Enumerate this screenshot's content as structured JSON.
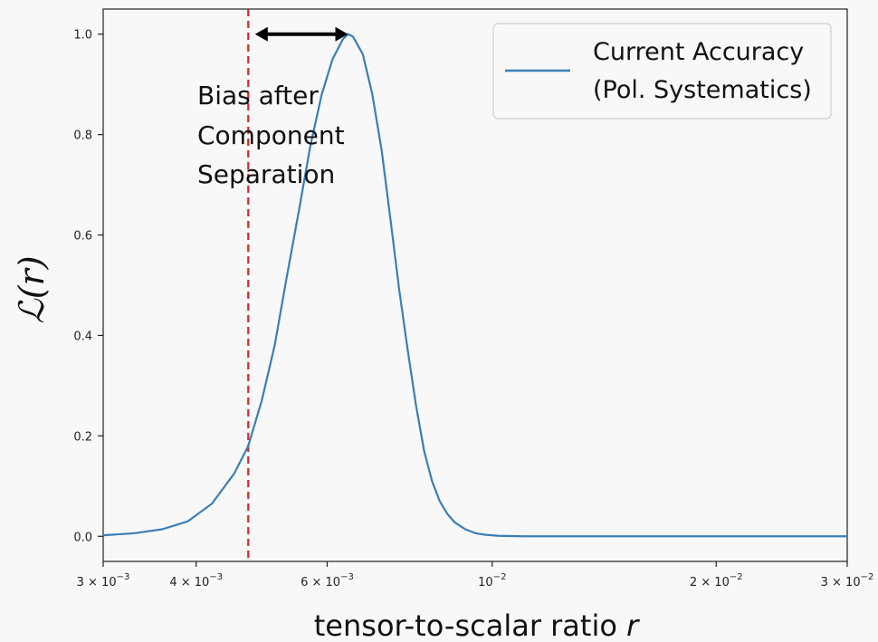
{
  "chart_data": {
    "type": "line",
    "xscale": "log",
    "xlim": [
      0.003,
      0.03
    ],
    "ylim": [
      -0.05,
      1.05
    ],
    "xlabel_text": "tensor-to-scalar ratio ",
    "xlabel_var": "r",
    "ylabel": "ℒ(r)",
    "xticks": [
      {
        "value": 0.003,
        "mant": "3 × 10",
        "exp": "−3"
      },
      {
        "value": 0.004,
        "mant": "4 × 10",
        "exp": "−3"
      },
      {
        "value": 0.006,
        "mant": "6 × 10",
        "exp": "−3"
      },
      {
        "value": 0.01,
        "mant": "10",
        "exp": "−2"
      },
      {
        "value": 0.02,
        "mant": "2 × 10",
        "exp": "−2"
      },
      {
        "value": 0.03,
        "mant": "3 × 10",
        "exp": "−2"
      }
    ],
    "yticks": [
      {
        "value": 0.0,
        "label": "0.0"
      },
      {
        "value": 0.2,
        "label": "0.2"
      },
      {
        "value": 0.4,
        "label": "0.4"
      },
      {
        "value": 0.6,
        "label": "0.6"
      },
      {
        "value": 0.8,
        "label": "0.8"
      },
      {
        "value": 1.0,
        "label": "1.0"
      }
    ],
    "series": [
      {
        "name": "Current Accuracy\n(Pol. Systematics)",
        "color": "#3a7fb5",
        "x": [
          0.003,
          0.0033,
          0.0036,
          0.0039,
          0.0042,
          0.0045,
          0.0047,
          0.0049,
          0.0051,
          0.0053,
          0.0055,
          0.0057,
          0.0059,
          0.0061,
          0.0063,
          0.0064,
          0.0065,
          0.0067,
          0.0069,
          0.0071,
          0.0073,
          0.0075,
          0.0077,
          0.0079,
          0.0081,
          0.0083,
          0.0085,
          0.0087,
          0.0089,
          0.0092,
          0.0095,
          0.0098,
          0.0102,
          0.011,
          0.012,
          0.015,
          0.02,
          0.025,
          0.03
        ],
        "y": [
          0.002,
          0.006,
          0.014,
          0.03,
          0.065,
          0.125,
          0.18,
          0.27,
          0.38,
          0.52,
          0.65,
          0.78,
          0.88,
          0.95,
          0.99,
          1.0,
          0.995,
          0.96,
          0.88,
          0.77,
          0.63,
          0.49,
          0.37,
          0.26,
          0.17,
          0.11,
          0.07,
          0.045,
          0.028,
          0.014,
          0.006,
          0.003,
          0.001,
          0.0,
          0.0,
          0.0,
          0.0,
          0.0,
          0.0
        ]
      }
    ],
    "vline": {
      "x": 0.0047,
      "color": "#d62728",
      "style": "dashed"
    },
    "annotation": {
      "lines": [
        "Bias after",
        "Component",
        "Separation"
      ],
      "arrow_x": [
        0.0048,
        0.0064
      ],
      "arrow_y": 1.0
    },
    "legend_position": "top-right"
  }
}
